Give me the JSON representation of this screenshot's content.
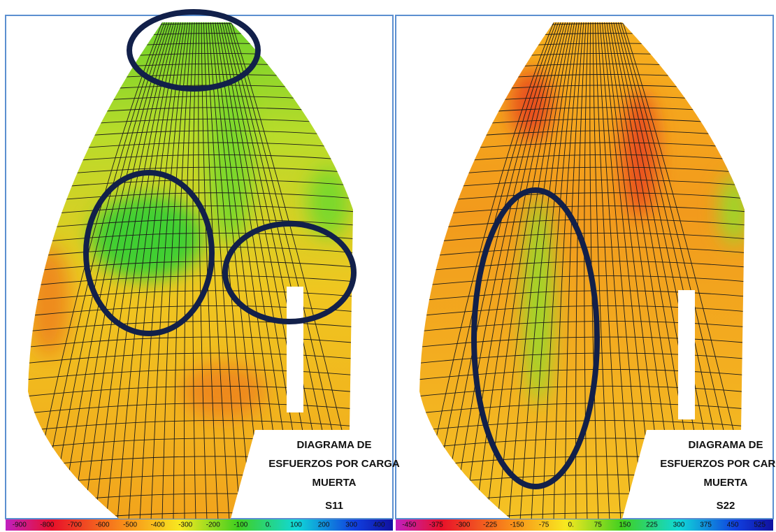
{
  "panels": [
    {
      "caption": [
        "DIAGRAMA DE",
        "ESFUERZOS POR CARGA",
        "MUERTA"
      ],
      "component": "S11",
      "colorbar": [
        "-900",
        "-800",
        "-700",
        "-600",
        "-500",
        "-400",
        "-300",
        "-200",
        "-100",
        "0.",
        "100",
        "200",
        "300",
        "400"
      ]
    },
    {
      "caption": [
        "DIAGRAMA DE",
        "ESFUERZOS POR CARGA",
        "MUERTA"
      ],
      "component": "S22",
      "colorbar": [
        "-450",
        "-375",
        "-300",
        "-225",
        "-150",
        "-75",
        "0.",
        "75",
        "150",
        "225",
        "300",
        "375",
        "450",
        "525"
      ]
    }
  ]
}
